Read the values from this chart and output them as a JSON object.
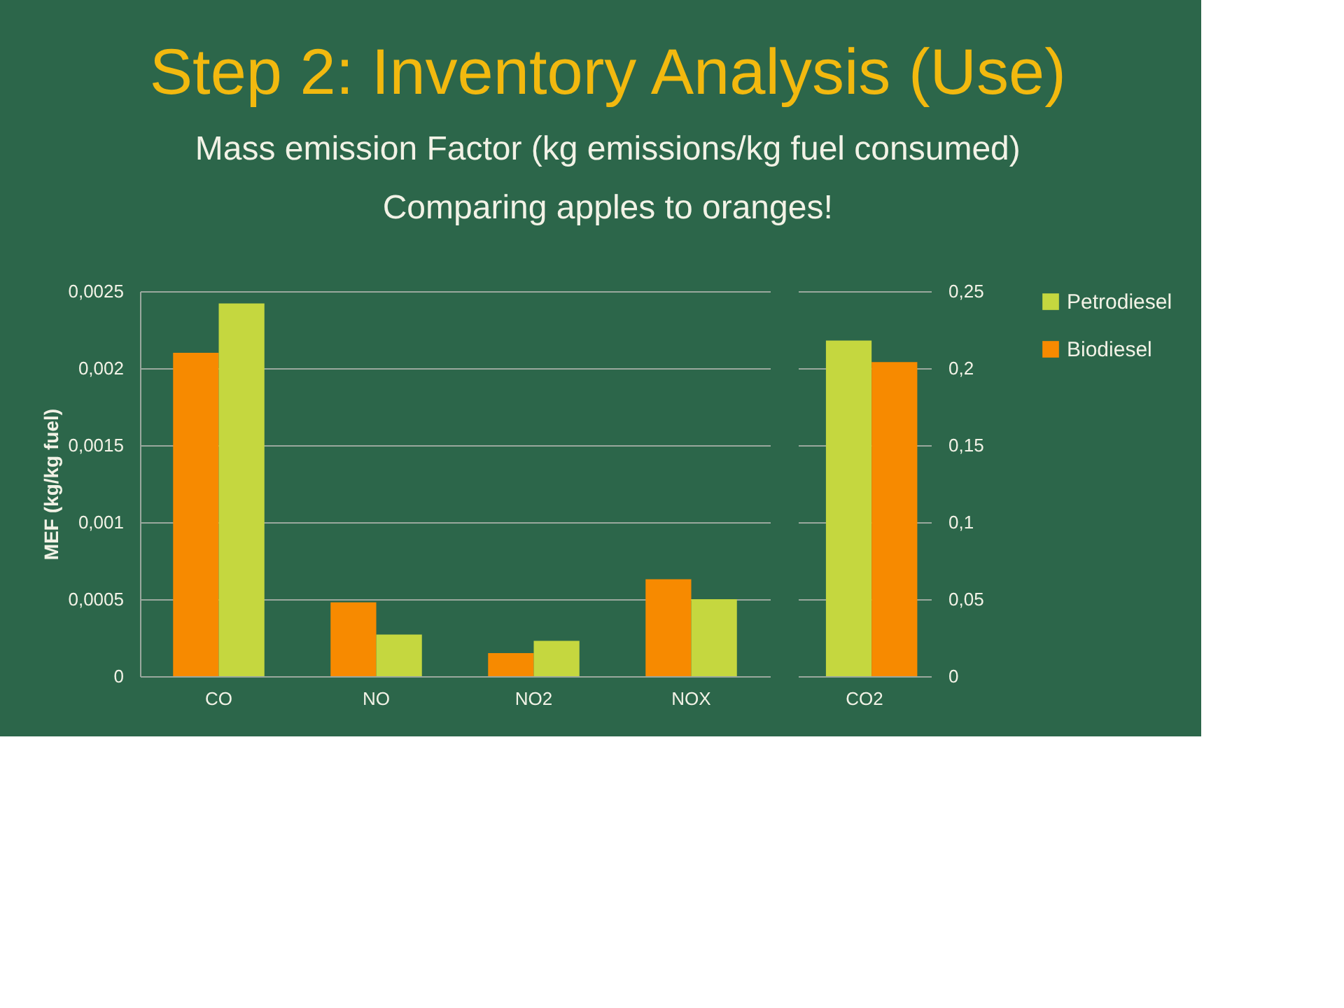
{
  "chart_data": [
    {
      "type": "bar",
      "title": "Step 2:  Inventory Analysis (Use)",
      "subtitle": "Mass emission Factor (kg emissions/kg fuel consumed)",
      "annotations": [
        "Comparing apples to oranges!"
      ],
      "ylabel": "MEF (kg/kg fuel)",
      "categories": [
        "CO",
        "NO",
        "NO2",
        "NOX"
      ],
      "series": [
        {
          "color": "#f78a00",
          "values": [
            0.0021,
            0.00048,
            0.00015,
            0.00063
          ]
        },
        {
          "color": "#c5d73f",
          "values": [
            0.00242,
            0.00027,
            0.00023,
            0.0005
          ]
        }
      ],
      "ylim": [
        0,
        0.0025
      ],
      "yticks": [
        0,
        {
          "value": 0.0005,
          "label": "0,0005"
        },
        {
          "value": 0.001,
          "label": "0,001"
        },
        {
          "value": 0.0015,
          "label": "0,0015"
        },
        {
          "value": 0.002,
          "label": "0,002"
        },
        {
          "value": 0.0025,
          "label": "0,0025"
        }
      ],
      "grid": "y",
      "legend": false
    },
    {
      "type": "bar",
      "categories": [
        "CO2"
      ],
      "series": [
        {
          "name": "Petrodiesel",
          "color": "#c5d73f",
          "values": [
            0.218
          ],
          "axis": "y2"
        },
        {
          "name": "Biodiesel",
          "color": "#f78a00",
          "values": [
            0.204
          ],
          "axis": "y2"
        }
      ],
      "y2lim": [
        0,
        0.25
      ],
      "y2ticks": [
        0,
        {
          "value": 0.05,
          "label": "0,05"
        },
        {
          "value": 0.1,
          "label": "0,1"
        },
        {
          "value": 0.15,
          "label": "0,15"
        },
        {
          "value": 0.2,
          "label": "0,2"
        },
        {
          "value": 0.25,
          "label": "0,25"
        }
      ],
      "grid": "y",
      "legend": "right"
    }
  ]
}
